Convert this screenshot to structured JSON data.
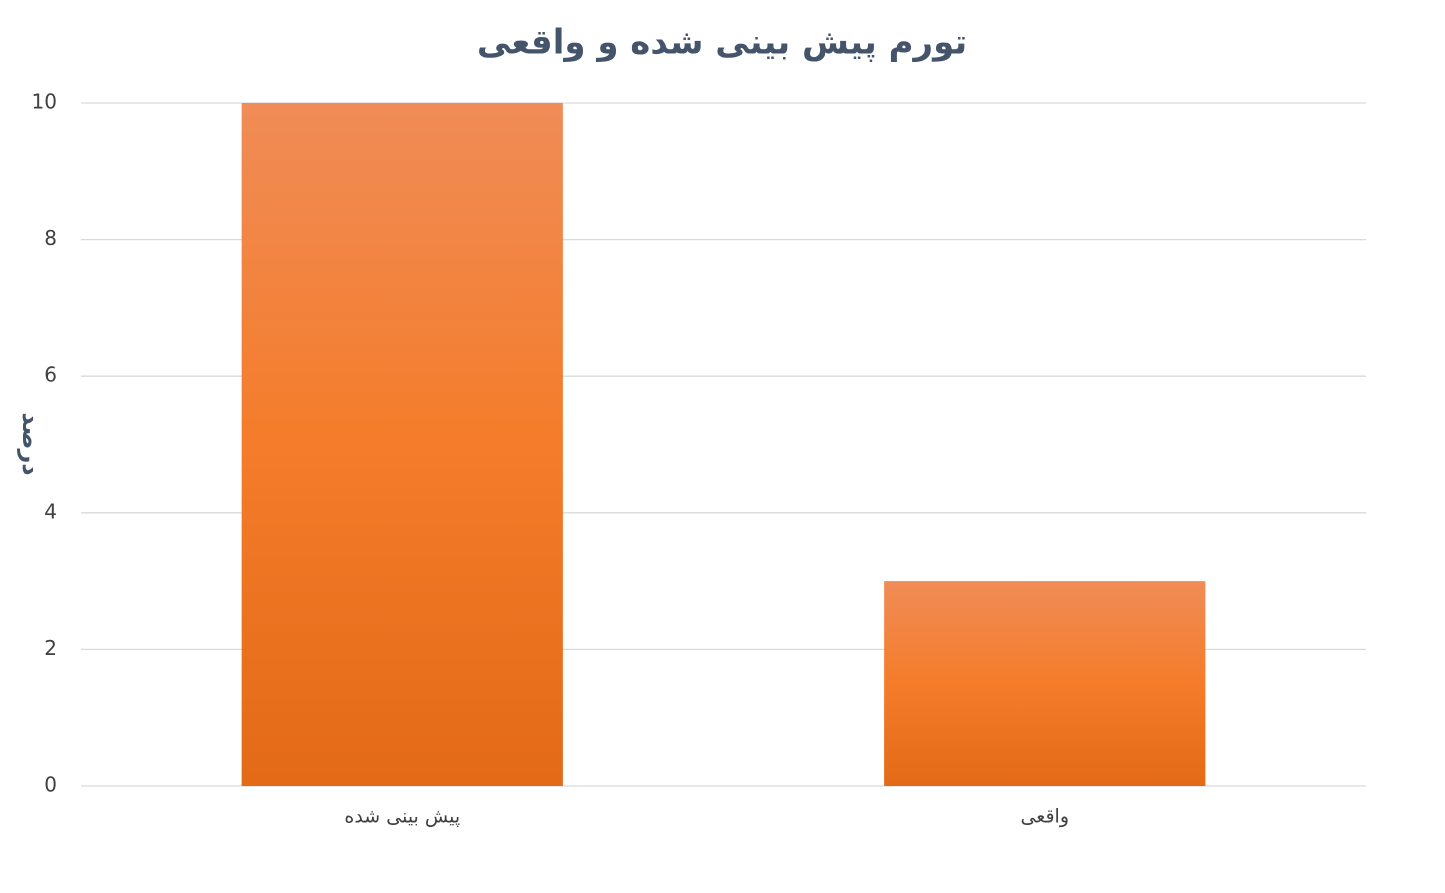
{
  "chart_data": {
    "type": "bar",
    "title": "تورم پیش بینی شده و واقعی",
    "y_label": "درصد",
    "categories": [
      "پیش بینی شده",
      "واقعی"
    ],
    "values": [
      10,
      3
    ],
    "color": "#ed7d31",
    "ylim": [
      0,
      10
    ],
    "yticks": [
      0,
      2,
      4,
      6,
      8,
      10
    ],
    "grid": true
  }
}
